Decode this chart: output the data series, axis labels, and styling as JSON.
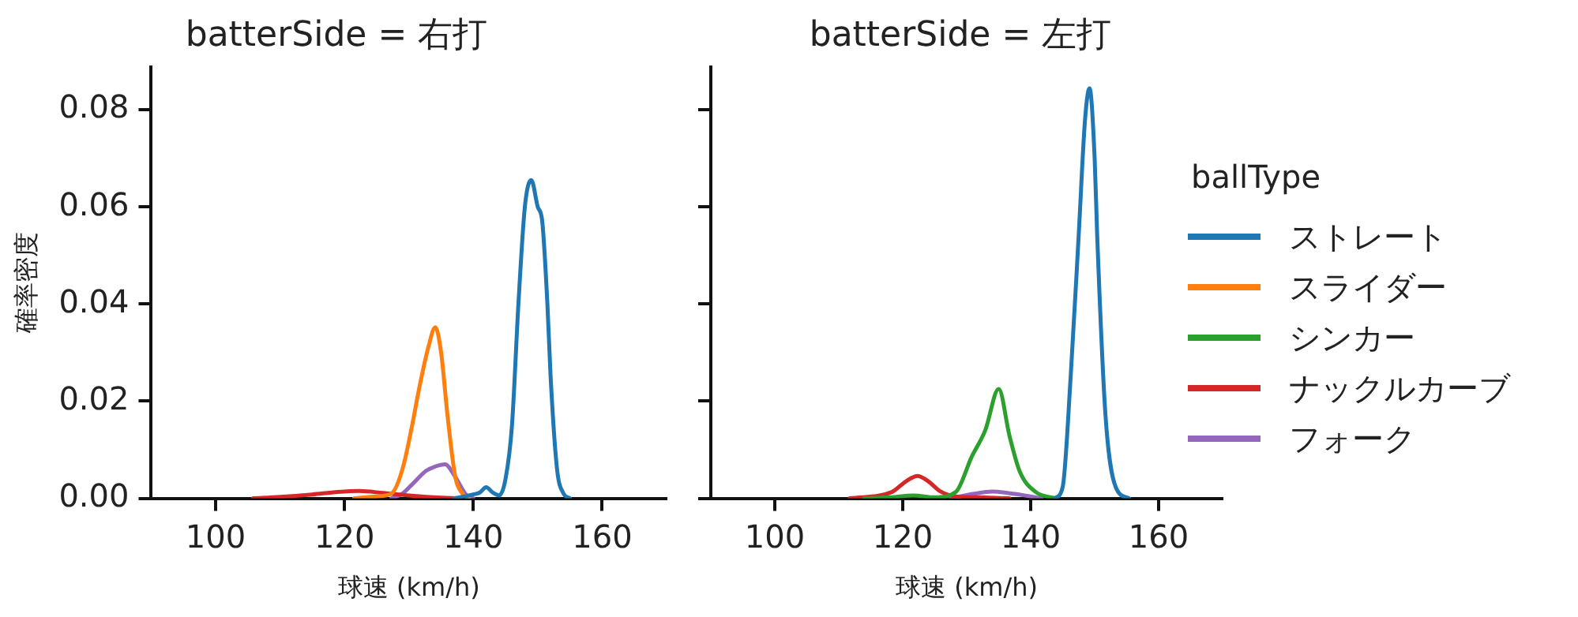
{
  "chart_data": [
    {
      "type": "line",
      "title": "batterSide = 右打",
      "xlabel": "球速 (km/h)",
      "ylabel": "確率密度",
      "xlim": [
        90,
        170
      ],
      "ylim": [
        0,
        0.0888
      ],
      "xticks": [
        100,
        120,
        140,
        160
      ],
      "yticks": [
        {
          "value": 0,
          "label": "0.00"
        },
        {
          "value": 0.02,
          "label": "0.02"
        },
        {
          "value": 0.04,
          "label": "0.04"
        },
        {
          "value": 0.06,
          "label": "0.06"
        },
        {
          "value": 0.08,
          "label": "0.08"
        }
      ],
      "marker": "none",
      "line_style": "solid",
      "legend": "right",
      "legend_title": "ballType",
      "series": [
        {
          "name": "ストレート",
          "color": "#1f77b4",
          "x": [
            137,
            139,
            140,
            141,
            142,
            143,
            144,
            145,
            146,
            147,
            148,
            149,
            150,
            150.7,
            151.5,
            152,
            153,
            154,
            155
          ],
          "values": [
            0,
            0.0005,
            0.0008,
            0.0012,
            0.0023,
            0.0012,
            0.0006,
            0.004,
            0.015,
            0.04,
            0.06,
            0.0655,
            0.06,
            0.057,
            0.04,
            0.025,
            0.006,
            0.001,
            0
          ]
        },
        {
          "name": "スライダー",
          "color": "#ff7f0e",
          "x": [
            121.5,
            125,
            127.3,
            129,
            130.5,
            131.5,
            133,
            134.1,
            135,
            136,
            137.2,
            138.3,
            139.3
          ],
          "values": [
            0,
            0.0004,
            0.001,
            0.006,
            0.015,
            0.022,
            0.031,
            0.0352,
            0.03,
            0.017,
            0.0044,
            0.001,
            0
          ]
        },
        {
          "name": "ナックルカーブ",
          "color": "#d62728",
          "x": [
            105.8,
            110,
            115,
            119,
            122.3,
            126,
            130,
            134,
            138
          ],
          "values": [
            0,
            0.0003,
            0.0008,
            0.0013,
            0.0015,
            0.0011,
            0.0006,
            0.0002,
            0
          ]
        },
        {
          "name": "フォーク",
          "color": "#9467bd",
          "x": [
            127.3,
            129,
            130.6,
            132.7,
            134,
            135.6,
            137.2,
            138.9,
            140
          ],
          "values": [
            0,
            0.001,
            0.003,
            0.0057,
            0.0065,
            0.007,
            0.0044,
            0.0007,
            0
          ]
        }
      ]
    },
    {
      "type": "line",
      "title": "batterSide = 左打",
      "xlabel": "球速 (km/h)",
      "xlim": [
        90,
        170
      ],
      "ylim": [
        0,
        0.0888
      ],
      "xticks": [
        100,
        120,
        140,
        160
      ],
      "yticks": [
        {
          "value": 0,
          "label": null
        },
        {
          "value": 0.02,
          "label": null
        },
        {
          "value": 0.04,
          "label": null
        },
        {
          "value": 0.06,
          "label": null
        },
        {
          "value": 0.08,
          "label": null
        }
      ],
      "tick_labels": "x",
      "marker": "none",
      "line_style": "solid",
      "legend": "right",
      "series": [
        {
          "name": "ストレート",
          "color": "#1f77b4",
          "x": [
            143.75,
            145,
            146.25,
            147.5,
            148.5,
            149.2,
            150,
            150.4,
            151.7,
            153.3,
            155.4
          ],
          "values": [
            0,
            0.0023,
            0.025,
            0.054,
            0.078,
            0.0844,
            0.07,
            0.054,
            0.017,
            0.0023,
            0
          ]
        },
        {
          "name": "シンカー",
          "color": "#2ca02c",
          "x": [
            114,
            118,
            121.7,
            125,
            128.3,
            130.8,
            132.9,
            135,
            136.7,
            138.3,
            140.8,
            144
          ],
          "values": [
            0,
            0.0002,
            0.0006,
            0.0002,
            0.0013,
            0.0086,
            0.014,
            0.0225,
            0.0128,
            0.0055,
            0.0013,
            0
          ]
        },
        {
          "name": "ナックルカーブ",
          "color": "#d62728",
          "x": [
            111.7,
            118.3,
            120.5,
            122.3,
            124,
            125.8,
            128.3,
            132,
            136.7
          ],
          "values": [
            0,
            0.0013,
            0.0035,
            0.0046,
            0.0035,
            0.0015,
            0.0004,
            0.0002,
            0
          ]
        },
        {
          "name": "フォーク",
          "color": "#9467bd",
          "x": [
            127.5,
            131,
            134,
            137.5,
            141.7
          ],
          "values": [
            0,
            0.0009,
            0.0014,
            0.0009,
            0
          ]
        }
      ]
    }
  ]
}
